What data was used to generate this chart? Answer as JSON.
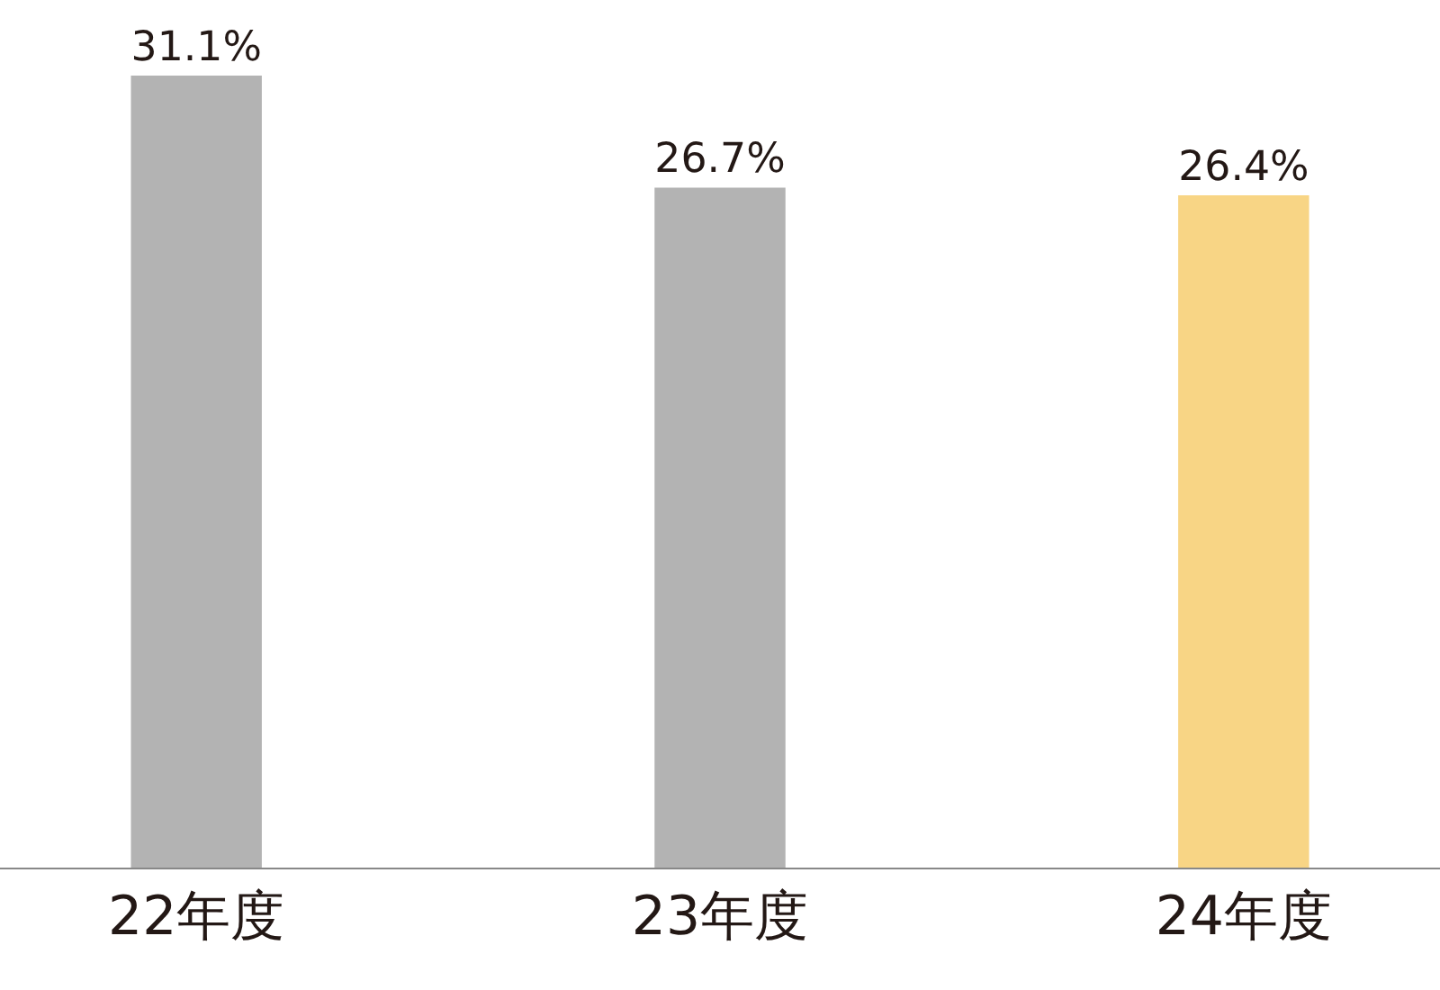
{
  "chart_data": {
    "type": "bar",
    "categories": [
      "22年度",
      "23年度",
      "24年度"
    ],
    "values": [
      31.1,
      26.7,
      26.4
    ],
    "colors": [
      "#b3b3b3",
      "#b3b3b3",
      "#f8d585"
    ],
    "value_labels": [
      "31.1%",
      "26.7%",
      "26.4%"
    ]
  }
}
